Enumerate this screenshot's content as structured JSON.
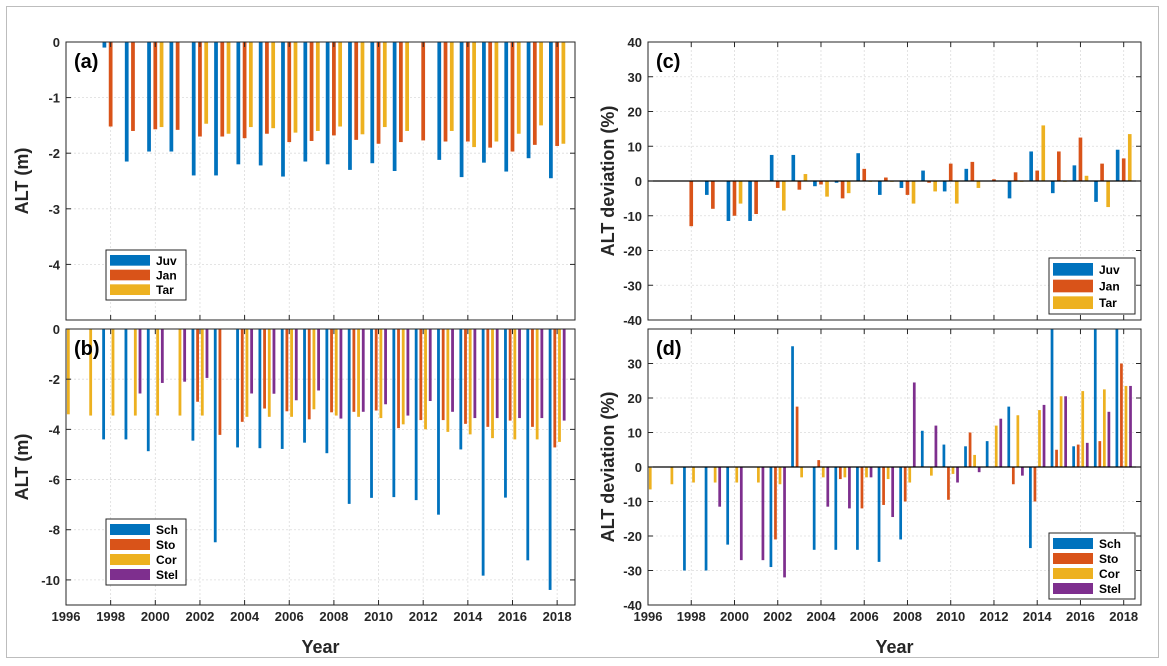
{
  "colors": {
    "juv": "#0072BD",
    "jan": "#D95319",
    "tar": "#EDB120",
    "sch": "#0072BD",
    "sto": "#D95319",
    "cor": "#EDB120",
    "stel": "#7E2F8E"
  },
  "chart_data": [
    {
      "id": "a",
      "panel_label": "(a)",
      "type": "bar",
      "xlabel": "",
      "ylabel": "ALT (m)",
      "xlim": [
        1996,
        2018.8
      ],
      "ylim": [
        -5,
        0
      ],
      "x_ticks": [
        1996,
        1998,
        2000,
        2002,
        2004,
        2006,
        2008,
        2010,
        2012,
        2014,
        2016,
        2018
      ],
      "y_ticks": [
        0,
        -1,
        -2,
        -3,
        -4
      ],
      "show_x_tick_labels": false,
      "grid": true,
      "legend_position": "bottom-left",
      "x": [
        1996,
        1997,
        1998,
        1999,
        2000,
        2001,
        2002,
        2003,
        2004,
        2005,
        2006,
        2007,
        2008,
        2009,
        2010,
        2011,
        2012,
        2013,
        2014,
        2015,
        2016,
        2017,
        2018
      ],
      "series": [
        {
          "name": "Juv",
          "color_key": "juv",
          "values": [
            null,
            null,
            -0.1,
            -2.15,
            -1.97,
            -1.97,
            -2.4,
            -2.4,
            -2.2,
            -2.22,
            -2.42,
            -2.15,
            -2.2,
            -2.3,
            -2.18,
            -2.32,
            null,
            -2.12,
            -2.43,
            -2.17,
            -2.33,
            -2.09,
            -2.45
          ]
        },
        {
          "name": "Jan",
          "color_key": "jan",
          "values": [
            null,
            null,
            -1.52,
            -1.6,
            -1.57,
            -1.58,
            -1.7,
            -1.7,
            -1.73,
            -1.65,
            -1.8,
            -1.78,
            -1.68,
            -1.76,
            -1.83,
            -1.8,
            -1.77,
            -1.79,
            -1.79,
            -1.9,
            -1.97,
            -1.85,
            -1.87
          ]
        },
        {
          "name": "Tar",
          "color_key": "tar",
          "values": [
            null,
            null,
            null,
            null,
            -1.53,
            null,
            -1.47,
            -1.65,
            -1.53,
            -1.55,
            -1.63,
            -1.6,
            -1.52,
            -1.66,
            -1.53,
            -1.6,
            null,
            -1.6,
            -1.89,
            -1.79,
            -1.65,
            -1.5,
            -1.83
          ]
        }
      ]
    },
    {
      "id": "b",
      "panel_label": "(b)",
      "type": "bar",
      "xlabel": "Year",
      "ylabel": "ALT (m)",
      "xlim": [
        1996,
        2018.8
      ],
      "ylim": [
        -11,
        0
      ],
      "x_ticks": [
        1996,
        1998,
        2000,
        2002,
        2004,
        2006,
        2008,
        2010,
        2012,
        2014,
        2016,
        2018
      ],
      "y_ticks": [
        0,
        -2,
        -4,
        -6,
        -8,
        -10
      ],
      "show_x_tick_labels": true,
      "grid": true,
      "legend_position": "bottom-left",
      "x": [
        1996,
        1997,
        1998,
        1999,
        2000,
        2001,
        2002,
        2003,
        2004,
        2005,
        2006,
        2007,
        2008,
        2009,
        2010,
        2011,
        2012,
        2013,
        2014,
        2015,
        2016,
        2017,
        2018
      ],
      "series": [
        {
          "name": "Sch",
          "color_key": "sch",
          "values": [
            null,
            null,
            -4.4,
            -4.4,
            -4.87,
            null,
            -4.45,
            -8.5,
            -4.72,
            -4.75,
            -4.78,
            -4.53,
            -4.95,
            -6.97,
            -6.73,
            -6.7,
            -6.82,
            -7.4,
            -4.8,
            -9.83,
            -6.72,
            -9.22,
            -10.4
          ]
        },
        {
          "name": "Sto",
          "color_key": "sto",
          "values": [
            null,
            null,
            null,
            null,
            null,
            null,
            -2.9,
            -4.22,
            -3.7,
            -3.17,
            -3.28,
            -3.6,
            -3.32,
            -3.3,
            -3.25,
            -3.95,
            -3.63,
            -3.63,
            -3.78,
            -3.9,
            -3.65,
            -3.9,
            -4.72
          ]
        },
        {
          "name": "Cor",
          "color_key": "cor",
          "values": [
            -3.4,
            -3.45,
            -3.45,
            -3.45,
            -3.45,
            -3.45,
            -3.45,
            null,
            -3.5,
            -3.5,
            -3.5,
            -3.2,
            -3.45,
            -3.5,
            -3.55,
            -3.8,
            -4.0,
            -4.1,
            -4.2,
            -4.35,
            -4.4,
            -4.4,
            -4.5
          ]
        },
        {
          "name": "Stel",
          "color_key": "stel",
          "values": [
            null,
            null,
            null,
            -2.57,
            -2.15,
            -2.1,
            -1.95,
            null,
            -2.57,
            -2.58,
            -2.84,
            -2.45,
            -3.57,
            -3.3,
            -3.0,
            -3.45,
            -2.87,
            -3.3,
            -3.55,
            -3.55,
            -3.55,
            -3.55,
            -3.65
          ]
        }
      ]
    },
    {
      "id": "c",
      "panel_label": "(c)",
      "type": "bar",
      "xlabel": "",
      "ylabel": "ALT deviation (%)",
      "xlim": [
        1996,
        2018.8
      ],
      "ylim": [
        -40,
        40
      ],
      "x_ticks": [
        1996,
        1998,
        2000,
        2002,
        2004,
        2006,
        2008,
        2010,
        2012,
        2014,
        2016,
        2018
      ],
      "y_ticks": [
        40,
        30,
        20,
        10,
        0,
        -10,
        -20,
        -30,
        -40
      ],
      "show_x_tick_labels": false,
      "grid": true,
      "legend_position": "bottom-right",
      "x": [
        1996,
        1997,
        1998,
        1999,
        2000,
        2001,
        2002,
        2003,
        2004,
        2005,
        2006,
        2007,
        2008,
        2009,
        2010,
        2011,
        2012,
        2013,
        2014,
        2015,
        2016,
        2017,
        2018
      ],
      "series": [
        {
          "name": "Juv",
          "color_key": "juv",
          "values": [
            null,
            null,
            null,
            -4.0,
            -11.5,
            -11.5,
            7.5,
            7.5,
            -1.5,
            -0.5,
            8.0,
            -4.0,
            -2.0,
            3.0,
            -3.0,
            3.5,
            null,
            -5.0,
            8.5,
            -3.5,
            4.5,
            -6.0,
            9.0
          ]
        },
        {
          "name": "Jan",
          "color_key": "jan",
          "values": [
            null,
            null,
            -13.0,
            -8.0,
            -10.0,
            -9.5,
            -2.0,
            -2.5,
            -1.0,
            -5.0,
            3.5,
            1.0,
            -4.0,
            -0.5,
            5.0,
            5.5,
            0.5,
            2.5,
            3.0,
            8.5,
            12.5,
            5.0,
            6.5
          ]
        },
        {
          "name": "Tar",
          "color_key": "tar",
          "values": [
            null,
            null,
            null,
            null,
            -6.5,
            null,
            -8.5,
            2.0,
            -4.5,
            -3.5,
            0.0,
            0.0,
            -6.5,
            -3.0,
            -6.5,
            -2.0,
            null,
            0.0,
            16.0,
            0.0,
            1.5,
            -7.5,
            13.5
          ]
        }
      ]
    },
    {
      "id": "d",
      "panel_label": "(d)",
      "type": "bar",
      "xlabel": "Year",
      "ylabel": "ALT deviation (%)",
      "xlim": [
        1996,
        2018.8
      ],
      "ylim": [
        -40,
        40
      ],
      "x_ticks": [
        1996,
        1998,
        2000,
        2002,
        2004,
        2006,
        2008,
        2010,
        2012,
        2014,
        2016,
        2018
      ],
      "y_ticks": [
        30,
        20,
        10,
        0,
        -10,
        -20,
        -30,
        -40
      ],
      "show_x_tick_labels": true,
      "grid": true,
      "legend_position": "bottom-right",
      "x": [
        1996,
        1997,
        1998,
        1999,
        2000,
        2001,
        2002,
        2003,
        2004,
        2005,
        2006,
        2007,
        2008,
        2009,
        2010,
        2011,
        2012,
        2013,
        2014,
        2015,
        2016,
        2017,
        2018
      ],
      "series": [
        {
          "name": "Sch",
          "color_key": "sch",
          "values": [
            null,
            null,
            -30.0,
            -30.0,
            -22.5,
            null,
            -29.0,
            35.0,
            -24.0,
            -24.0,
            -24.0,
            -27.5,
            -21.0,
            10.5,
            6.5,
            6.0,
            7.5,
            17.5,
            -23.5,
            45.0,
            6.0,
            45.0,
            45.0
          ]
        },
        {
          "name": "Sto",
          "color_key": "sto",
          "values": [
            null,
            null,
            null,
            null,
            null,
            null,
            -21.0,
            17.5,
            2.0,
            -3.5,
            -12.0,
            -11.0,
            -10.0,
            null,
            -9.5,
            10.0,
            null,
            -5.0,
            -10.0,
            5.0,
            6.5,
            7.5,
            30.0
          ]
        },
        {
          "name": "Cor",
          "color_key": "cor",
          "values": [
            -6.5,
            -5.0,
            -4.5,
            -4.5,
            -4.5,
            -4.5,
            -5.0,
            -3.0,
            -3.0,
            -3.0,
            -3.0,
            -3.5,
            -4.5,
            -2.5,
            -2.0,
            3.5,
            12.0,
            15.0,
            16.5,
            20.5,
            22.0,
            22.5,
            23.5
          ]
        },
        {
          "name": "Stel",
          "color_key": "stel",
          "values": [
            null,
            null,
            null,
            -11.5,
            -27.0,
            -27.0,
            -32.0,
            null,
            -11.5,
            -12.0,
            -3.0,
            -14.5,
            24.5,
            12.0,
            -4.5,
            -1.5,
            14.0,
            -2.5,
            18.0,
            20.5,
            7.0,
            16.0,
            23.5
          ]
        }
      ]
    }
  ]
}
